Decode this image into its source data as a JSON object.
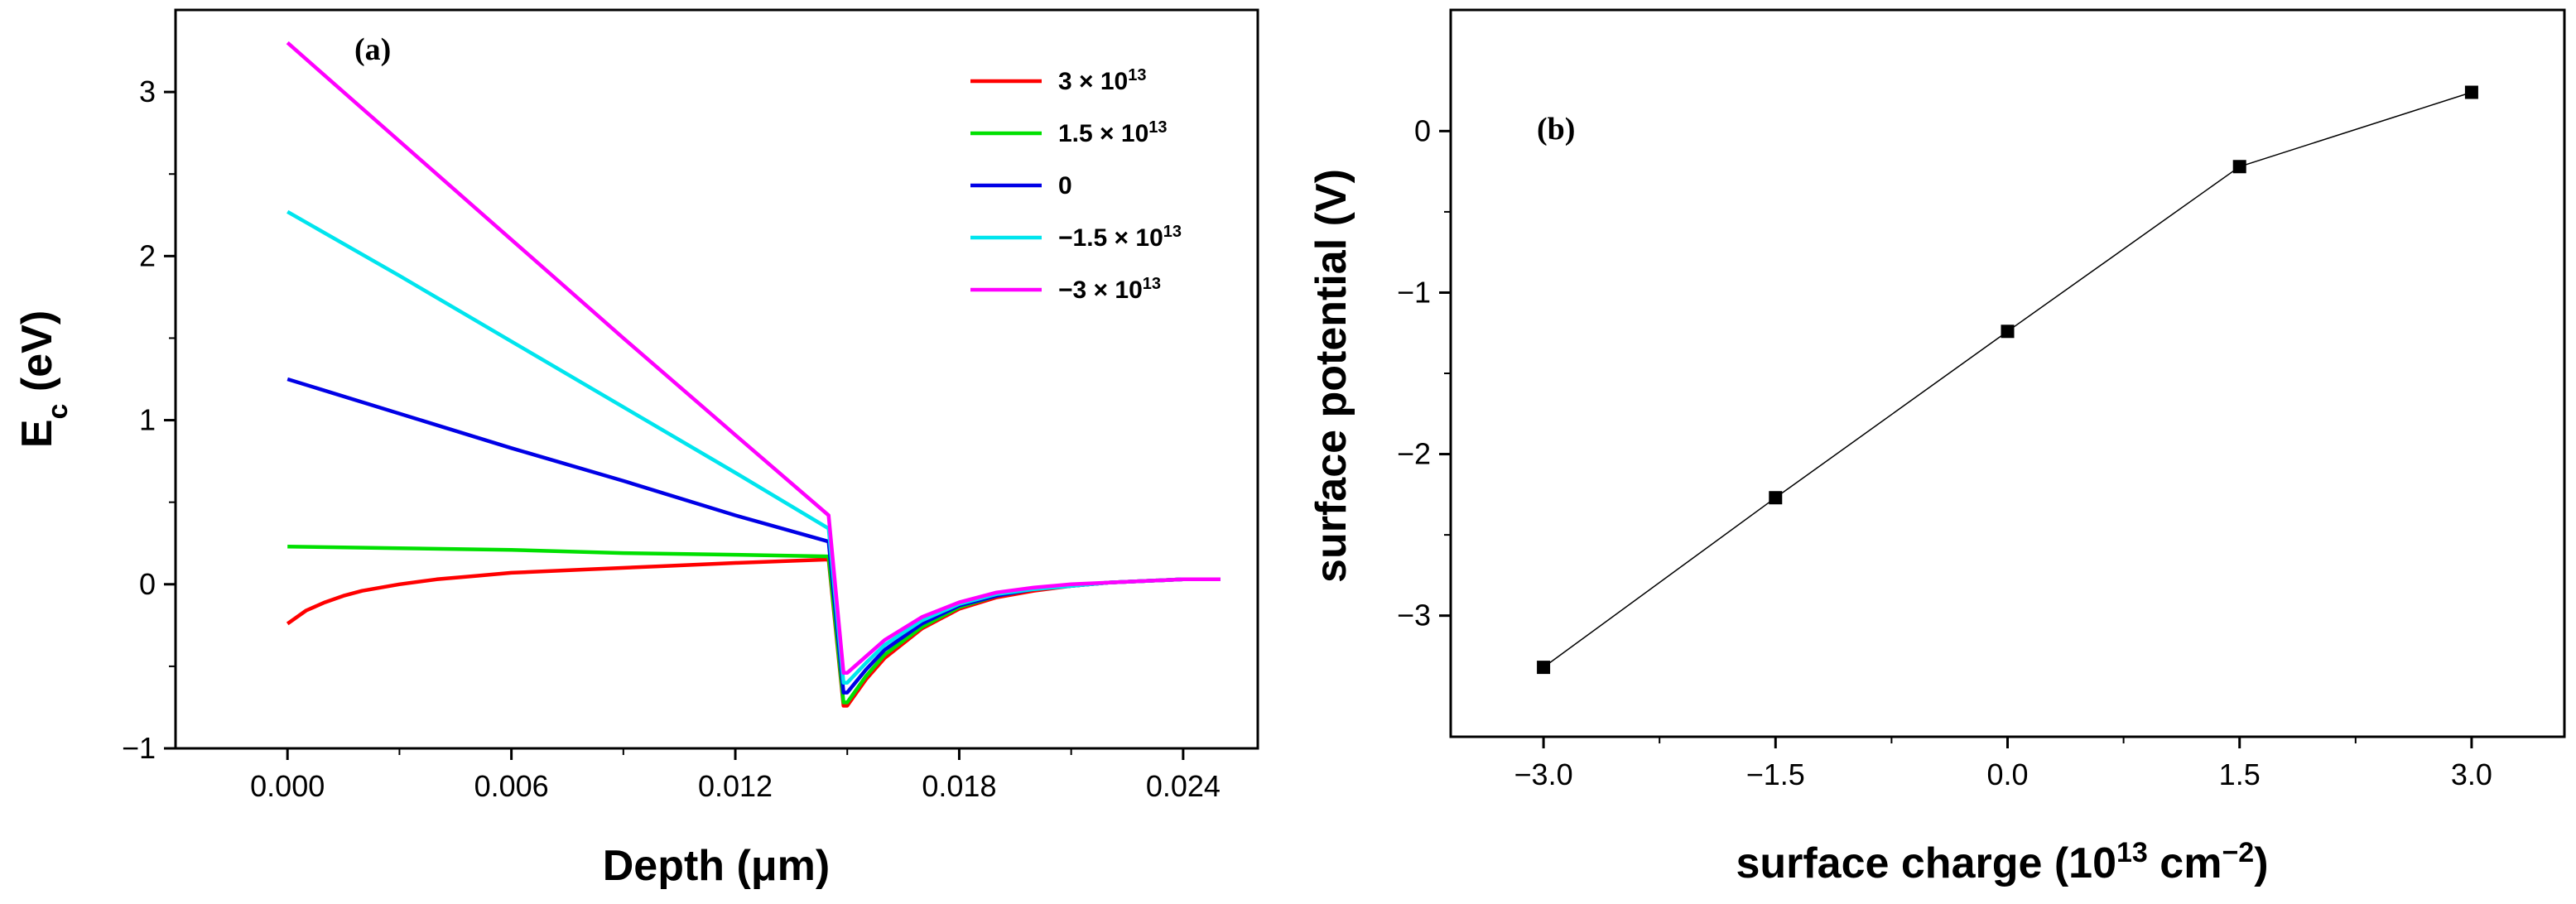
{
  "chart_data": [
    {
      "type": "line",
      "panel_label": "(a)",
      "xlabel_main": "Depth (",
      "xlabel_unit": "μm",
      "xlabel_close": ")",
      "ylabel_main": "E",
      "ylabel_sub": "c",
      "ylabel_rest": " (eV)",
      "xlim": [
        -0.003,
        0.026
      ],
      "ylim": [
        -1.0,
        3.5
      ],
      "xticks": [
        0.0,
        0.006,
        0.012,
        0.018,
        0.024
      ],
      "xtick_labels": [
        "0.000",
        "0.006",
        "0.012",
        "0.018",
        "0.024"
      ],
      "yticks": [
        -1,
        0,
        1,
        2,
        3
      ],
      "ytick_labels": [
        "−1",
        "0",
        "1",
        "2",
        "3"
      ],
      "grid": false,
      "legend_placement": "top-right",
      "series": [
        {
          "name": "3 × 10",
          "name_sup": "13",
          "color": "#ff0000",
          "x": [
            0.0,
            0.0005,
            0.001,
            0.0015,
            0.002,
            0.003,
            0.004,
            0.005,
            0.006,
            0.008,
            0.01,
            0.012,
            0.0144,
            0.0145,
            0.0149,
            0.015,
            0.0155,
            0.016,
            0.017,
            0.018,
            0.019,
            0.02,
            0.021,
            0.022,
            0.023,
            0.024,
            0.025
          ],
          "y": [
            -0.24,
            -0.16,
            -0.11,
            -0.07,
            -0.04,
            0.0,
            0.03,
            0.05,
            0.07,
            0.09,
            0.11,
            0.13,
            0.15,
            0.15,
            -0.74,
            -0.74,
            -0.58,
            -0.45,
            -0.27,
            -0.15,
            -0.08,
            -0.04,
            -0.01,
            0.01,
            0.02,
            0.03,
            0.03
          ]
        },
        {
          "name": "1.5 × 10",
          "name_sup": "13",
          "color": "#00e000",
          "x": [
            0.0,
            0.003,
            0.006,
            0.009,
            0.012,
            0.0145,
            0.0149,
            0.015,
            0.0155,
            0.016,
            0.017,
            0.018,
            0.019,
            0.02,
            0.021,
            0.022,
            0.023,
            0.024,
            0.025
          ],
          "y": [
            0.23,
            0.22,
            0.21,
            0.19,
            0.18,
            0.17,
            -0.72,
            -0.72,
            -0.56,
            -0.43,
            -0.26,
            -0.14,
            -0.07,
            -0.03,
            -0.01,
            0.01,
            0.02,
            0.03,
            0.03
          ]
        },
        {
          "name": "0",
          "name_sup": "",
          "color": "#0000e6",
          "x": [
            0.0,
            0.003,
            0.006,
            0.009,
            0.012,
            0.0145,
            0.0149,
            0.015,
            0.0155,
            0.016,
            0.017,
            0.018,
            0.019,
            0.02,
            0.021,
            0.022,
            0.023,
            0.024,
            0.025
          ],
          "y": [
            1.25,
            1.04,
            0.83,
            0.63,
            0.42,
            0.26,
            -0.66,
            -0.66,
            -0.52,
            -0.4,
            -0.24,
            -0.13,
            -0.07,
            -0.03,
            -0.01,
            0.01,
            0.02,
            0.03,
            0.03
          ]
        },
        {
          "name": "−1.5 × 10",
          "name_sup": "13",
          "color": "#00e5ee",
          "x": [
            0.0,
            0.003,
            0.006,
            0.009,
            0.012,
            0.0145,
            0.0149,
            0.015,
            0.0155,
            0.016,
            0.017,
            0.018,
            0.019,
            0.02,
            0.021,
            0.022,
            0.023,
            0.024,
            0.025
          ],
          "y": [
            2.27,
            1.88,
            1.48,
            1.08,
            0.68,
            0.34,
            -0.6,
            -0.6,
            -0.48,
            -0.37,
            -0.22,
            -0.12,
            -0.06,
            -0.03,
            -0.01,
            0.01,
            0.02,
            0.03,
            0.03
          ]
        },
        {
          "name": "−3 × 10",
          "name_sup": "13",
          "color": "#ff00ff",
          "x": [
            0.0,
            0.003,
            0.006,
            0.009,
            0.012,
            0.0145,
            0.0149,
            0.015,
            0.0155,
            0.016,
            0.017,
            0.018,
            0.019,
            0.02,
            0.021,
            0.022,
            0.023,
            0.024,
            0.025
          ],
          "y": [
            3.3,
            2.7,
            2.1,
            1.5,
            0.91,
            0.42,
            -0.54,
            -0.54,
            -0.44,
            -0.34,
            -0.2,
            -0.11,
            -0.05,
            -0.02,
            0.0,
            0.01,
            0.02,
            0.03,
            0.03
          ]
        }
      ]
    },
    {
      "type": "line",
      "panel_label": "(b)",
      "xlabel_main": "surface charge (10",
      "xlabel_sup1": "13",
      "xlabel_mid": " cm",
      "xlabel_sup2": "−2",
      "xlabel_close": ")",
      "ylabel": "surface potential (V)",
      "xlim": [
        -3.6,
        3.6
      ],
      "ylim": [
        -3.75,
        0.75
      ],
      "xticks": [
        -3.0,
        -1.5,
        0.0,
        1.5,
        3.0
      ],
      "xtick_labels": [
        "−3.0",
        "−1.5",
        "0.0",
        "1.5",
        "3.0"
      ],
      "yticks": [
        -3,
        -2,
        -1,
        0
      ],
      "ytick_labels": [
        "−3",
        "−2",
        "−1",
        "0"
      ],
      "grid": false,
      "series": [
        {
          "color": "#000000",
          "marker": "square",
          "x": [
            -3.0,
            -1.5,
            0.0,
            1.5,
            3.0
          ],
          "y": [
            -3.32,
            -2.27,
            -1.24,
            -0.22,
            0.24
          ]
        }
      ]
    }
  ]
}
